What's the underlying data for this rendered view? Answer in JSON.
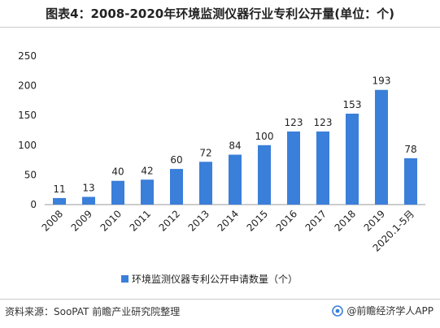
{
  "title": "图表4：2008-2020年环境监测仪器行业专利公开量(单位：个)",
  "source": "资料来源：SooPAT 前瞻产业研究院整理",
  "brand": "@前瞻经济学人APP",
  "colors": {
    "bar": "#3a7fd9",
    "axis": "#9a9a9a",
    "text": "#222222"
  },
  "chart_data": {
    "type": "bar",
    "title": "图表4：2008-2020年环境监测仪器行业专利公开量(单位：个)",
    "categories": [
      "2008",
      "2009",
      "2010",
      "2011",
      "2012",
      "2013",
      "2014",
      "2015",
      "2016",
      "2017",
      "2018",
      "2019",
      "2020.1-5月"
    ],
    "series": [
      {
        "name": "环境监测仪器专利公开申请数量（个）",
        "values": [
          11,
          13,
          40,
          42,
          60,
          72,
          84,
          100,
          123,
          123,
          153,
          193,
          78
        ]
      }
    ],
    "ylim": [
      0,
      250
    ],
    "yticks": [
      0,
      50,
      100,
      150,
      200,
      250
    ],
    "xlabel": "",
    "ylabel": "",
    "grid": false,
    "legend": "bottom"
  }
}
